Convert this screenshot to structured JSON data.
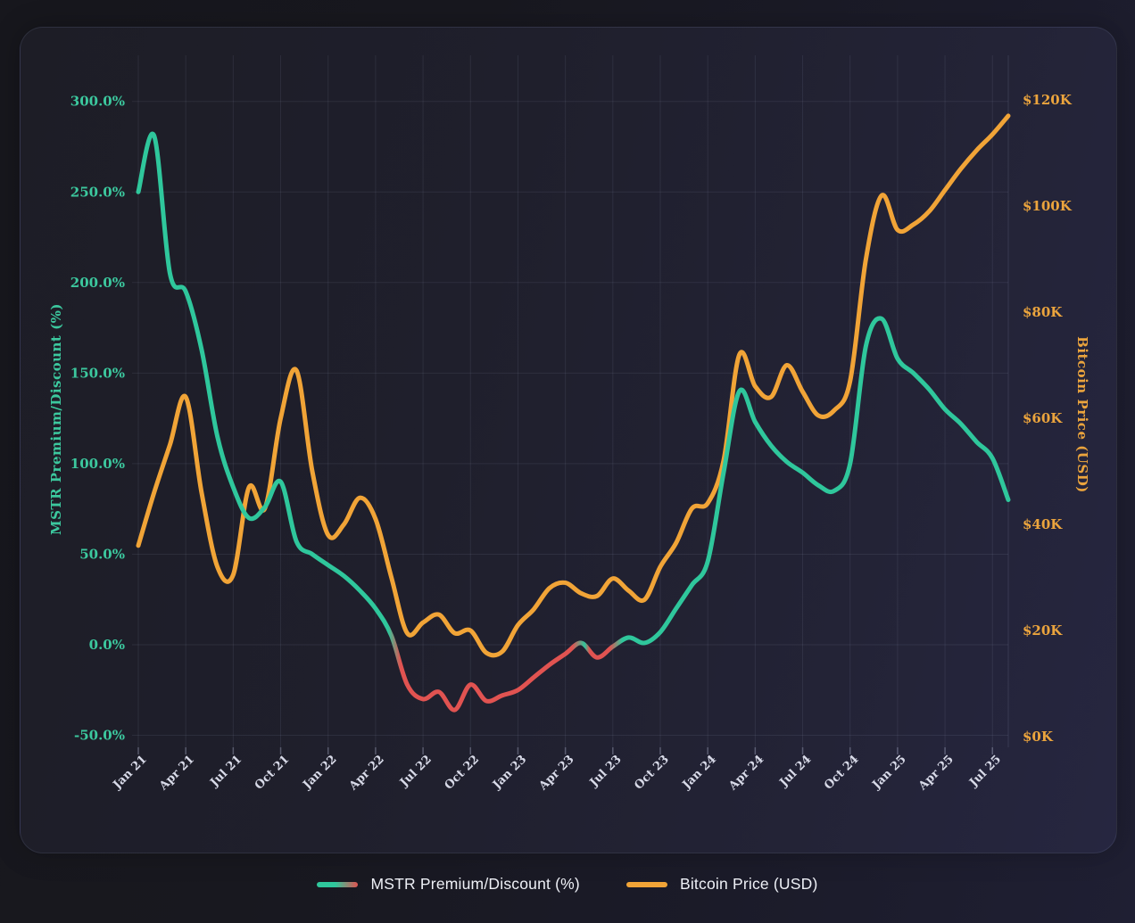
{
  "legend": {
    "mstr_label": "MSTR Premium/Discount (%)",
    "btc_label": "Bitcoin Price (USD)"
  },
  "chart_data": {
    "type": "line",
    "title": "",
    "x": [
      "Jan 21",
      "Feb 21",
      "Mar 21",
      "Apr 21",
      "May 21",
      "Jun 21",
      "Jul 21",
      "Aug 21",
      "Sep 21",
      "Oct 21",
      "Nov 21",
      "Dec 21",
      "Jan 22",
      "Feb 22",
      "Mar 22",
      "Apr 22",
      "May 22",
      "Jun 22",
      "Jul 22",
      "Aug 22",
      "Sep 22",
      "Oct 22",
      "Nov 22",
      "Dec 22",
      "Jan 23",
      "Feb 23",
      "Mar 23",
      "Apr 23",
      "May 23",
      "Jun 23",
      "Jul 23",
      "Aug 23",
      "Sep 23",
      "Oct 23",
      "Nov 23",
      "Dec 23",
      "Jan 24",
      "Feb 24",
      "Mar 24",
      "Apr 24",
      "May 24",
      "Jun 24",
      "Jul 24",
      "Aug 24",
      "Sep 24",
      "Oct 24",
      "Nov 24",
      "Dec 24",
      "Jan 25",
      "Feb 25",
      "Mar 25",
      "Apr 25",
      "May 25",
      "Jun 25",
      "Jul 25",
      "Aug 25"
    ],
    "x_tick_labels": [
      "Jan 21",
      "Apr 21",
      "Jul 21",
      "Oct 21",
      "Jan 22",
      "Apr 22",
      "Jul 22",
      "Oct 22",
      "Jan 23",
      "Apr 23",
      "Jul 23",
      "Oct 23",
      "Jan 24",
      "Apr 24",
      "Jul 24",
      "Oct 24",
      "Jan 25",
      "Apr 25",
      "Jul 25"
    ],
    "series": [
      {
        "name": "MSTR Premium/Discount (%)",
        "axis": "left",
        "unit": "%",
        "color_positive": "#2fc79c",
        "color_negative": "#e15351",
        "values": [
          250,
          281,
          205,
          195,
          163,
          115,
          87,
          70,
          76,
          90,
          57,
          50,
          44,
          38,
          30,
          20,
          5,
          -22,
          -30,
          -26,
          -36,
          -22,
          -31,
          -28,
          -25,
          -18,
          -11,
          -5,
          1,
          -7,
          -1,
          4,
          1,
          7,
          20,
          33,
          46,
          95,
          140,
          123,
          110,
          101,
          95,
          88,
          85,
          100,
          165,
          180,
          158,
          150,
          141,
          130,
          122,
          112,
          103,
          80
        ]
      },
      {
        "name": "Bitcoin Price (USD)",
        "axis": "right",
        "unit": "K USD",
        "color": "#f1a437",
        "values": [
          36,
          46,
          55,
          64,
          46,
          32,
          30.5,
          47,
          43,
          60,
          69,
          50,
          38,
          40,
          45,
          41,
          30,
          19.5,
          21.5,
          23,
          19.5,
          20,
          15.8,
          16,
          21,
          24,
          28,
          29,
          27,
          26.5,
          29.8,
          27.5,
          25.8,
          32,
          36.5,
          43,
          44,
          52,
          72,
          66,
          64,
          70,
          65,
          60.5,
          61.5,
          67,
          90,
          102,
          95.5,
          96.5,
          99,
          103,
          107,
          110.5,
          113.5,
          117
        ]
      }
    ],
    "y_left": {
      "title": "MSTR Premium/Discount (%)",
      "tick_labels": [
        "300.0%",
        "250.0%",
        "200.0%",
        "150.0%",
        "100.0%",
        "50.0%",
        "0.0%",
        "-50.0%"
      ],
      "tick_values": [
        300,
        250,
        200,
        150,
        100,
        50,
        0,
        -50
      ],
      "range": [
        -50,
        300
      ],
      "text_color": "#3cc89e"
    },
    "y_right": {
      "title": "Bitcoin Price (USD)",
      "tick_labels": [
        "$120K",
        "$100K",
        "$80K",
        "$60K",
        "$40K",
        "$20K",
        "$0K"
      ],
      "tick_values": [
        120,
        100,
        80,
        60,
        40,
        20,
        0
      ],
      "range": [
        0,
        120
      ],
      "text_color": "#eba43d"
    },
    "x_tick_text_color": "#d8dae8",
    "grid": true,
    "legend_position": "bottom"
  }
}
